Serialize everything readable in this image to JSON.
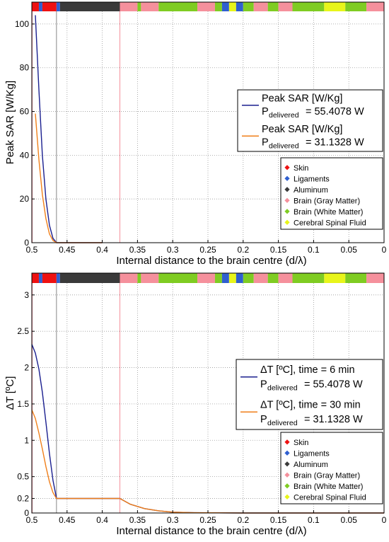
{
  "figure": {
    "tissues": [
      {
        "name": "Skin",
        "color": "#ee1111"
      },
      {
        "name": "Ligaments",
        "color": "#2f5fd0"
      },
      {
        "name": "Aluminum",
        "color": "#3a3a3a"
      },
      {
        "name": "Brain (Gray Matter)",
        "color": "#f5909c"
      },
      {
        "name": "Brain (White Matter)",
        "color": "#7fcc22"
      },
      {
        "name": "Cerebral Spinal Fluid",
        "color": "#e8f51a"
      }
    ],
    "tissue_bar": [
      {
        "from": 0.5,
        "to": 0.49,
        "tissue": 0
      },
      {
        "from": 0.49,
        "to": 0.485,
        "tissue": 1
      },
      {
        "from": 0.485,
        "to": 0.465,
        "tissue": 0
      },
      {
        "from": 0.465,
        "to": 0.46,
        "tissue": 1
      },
      {
        "from": 0.46,
        "to": 0.375,
        "tissue": 2
      },
      {
        "from": 0.375,
        "to": 0.35,
        "tissue": 3
      },
      {
        "from": 0.35,
        "to": 0.345,
        "tissue": 4
      },
      {
        "from": 0.345,
        "to": 0.32,
        "tissue": 3
      },
      {
        "from": 0.32,
        "to": 0.265,
        "tissue": 4
      },
      {
        "from": 0.265,
        "to": 0.24,
        "tissue": 3
      },
      {
        "from": 0.24,
        "to": 0.23,
        "tissue": 4
      },
      {
        "from": 0.23,
        "to": 0.22,
        "tissue": 1
      },
      {
        "from": 0.22,
        "to": 0.21,
        "tissue": 5
      },
      {
        "from": 0.21,
        "to": 0.2,
        "tissue": 1
      },
      {
        "from": 0.2,
        "to": 0.185,
        "tissue": 4
      },
      {
        "from": 0.185,
        "to": 0.165,
        "tissue": 3
      },
      {
        "from": 0.165,
        "to": 0.15,
        "tissue": 4
      },
      {
        "from": 0.15,
        "to": 0.13,
        "tissue": 3
      },
      {
        "from": 0.13,
        "to": 0.085,
        "tissue": 4
      },
      {
        "from": 0.085,
        "to": 0.055,
        "tissue": 5
      },
      {
        "from": 0.055,
        "to": 0.025,
        "tissue": 4
      },
      {
        "from": 0.025,
        "to": 0.0,
        "tissue": 3
      }
    ],
    "boundaries": [
      {
        "x": 0.465,
        "color": "#888888"
      },
      {
        "x": 0.375,
        "color": "#f5909c"
      }
    ]
  },
  "chart_data": [
    {
      "type": "line",
      "xlabel": "Internal distance to the brain centre (d/λ)",
      "ylabel": "Peak SAR [W/Kg]",
      "xlim": [
        0.5,
        0.0
      ],
      "ylim": [
        0,
        110
      ],
      "xticks": [
        "0.5",
        "0.45",
        "0.4",
        "0.35",
        "0.3",
        "0.25",
        "0.2",
        "0.15",
        "0.1",
        "0.05",
        "0"
      ],
      "yticks": [
        "0",
        "20",
        "40",
        "60",
        "80",
        "100"
      ],
      "ytick_values": [
        0,
        20,
        40,
        60,
        80,
        100
      ],
      "grid": true,
      "legend_position": "right",
      "series": [
        {
          "name": "Peak SAR [W/Kg]",
          "power_label": "P",
          "power_subscript": "delivered",
          "power_value": "= 55.4078 W",
          "color": "#1a1f8f",
          "x": [
            0.495,
            0.49,
            0.485,
            0.48,
            0.475,
            0.47,
            0.465,
            0.46,
            0.4
          ],
          "y": [
            104,
            70,
            40,
            20,
            8,
            2,
            0,
            0,
            0
          ]
        },
        {
          "name": "Peak SAR [W/Kg]",
          "power_label": "P",
          "power_subscript": "delivered",
          "power_value": "= 31.1328 W",
          "color": "#f07f1a",
          "x": [
            0.495,
            0.49,
            0.485,
            0.48,
            0.475,
            0.47,
            0.465,
            0.46,
            0.4
          ],
          "y": [
            59,
            38,
            22,
            11,
            4,
            1,
            0,
            0,
            0
          ]
        }
      ]
    },
    {
      "type": "line",
      "xlabel": "Internal distance to the brain centre (d/λ)",
      "ylabel": "ΔT [ºC]",
      "xlim": [
        0.5,
        0.0
      ],
      "ylim": [
        0,
        3.3
      ],
      "xticks": [
        "0.5",
        "0.45",
        "0.4",
        "0.35",
        "0.3",
        "0.25",
        "0.2",
        "0.15",
        "0.1",
        "0.05",
        "0"
      ],
      "yticks": [
        "0",
        "0.2",
        "0.5",
        "1",
        "1.5",
        "2",
        "2.5",
        "3"
      ],
      "ytick_values": [
        0,
        0.2,
        0.5,
        1,
        1.5,
        2,
        2.5,
        3
      ],
      "grid": true,
      "legend_position": "right",
      "series": [
        {
          "name": "ΔT [ºC], time = 6 min",
          "power_label": "P",
          "power_subscript": "delivered",
          "power_value": "= 55.4078 W",
          "color": "#1a1f8f",
          "x": [
            0.5,
            0.495,
            0.49,
            0.485,
            0.48,
            0.475,
            0.47,
            0.465,
            0.375,
            0.36,
            0.34,
            0.32,
            0.3,
            0.27,
            0.2,
            0.0
          ],
          "y": [
            2.32,
            2.2,
            1.98,
            1.66,
            1.25,
            0.82,
            0.45,
            0.2,
            0.2,
            0.12,
            0.06,
            0.03,
            0.012,
            0.004,
            0.0,
            0.0
          ]
        },
        {
          "name": "ΔT [ºC], time = 30 min",
          "power_label": "P",
          "power_subscript": "delivered",
          "power_value": "= 31.1328 W",
          "color": "#f07f1a",
          "x": [
            0.5,
            0.495,
            0.49,
            0.485,
            0.48,
            0.475,
            0.47,
            0.465,
            0.375,
            0.36,
            0.34,
            0.32,
            0.3,
            0.27,
            0.2,
            0.0
          ],
          "y": [
            1.42,
            1.3,
            1.1,
            0.88,
            0.64,
            0.43,
            0.28,
            0.2,
            0.2,
            0.12,
            0.06,
            0.03,
            0.012,
            0.004,
            0.0,
            0.0
          ]
        }
      ]
    }
  ]
}
